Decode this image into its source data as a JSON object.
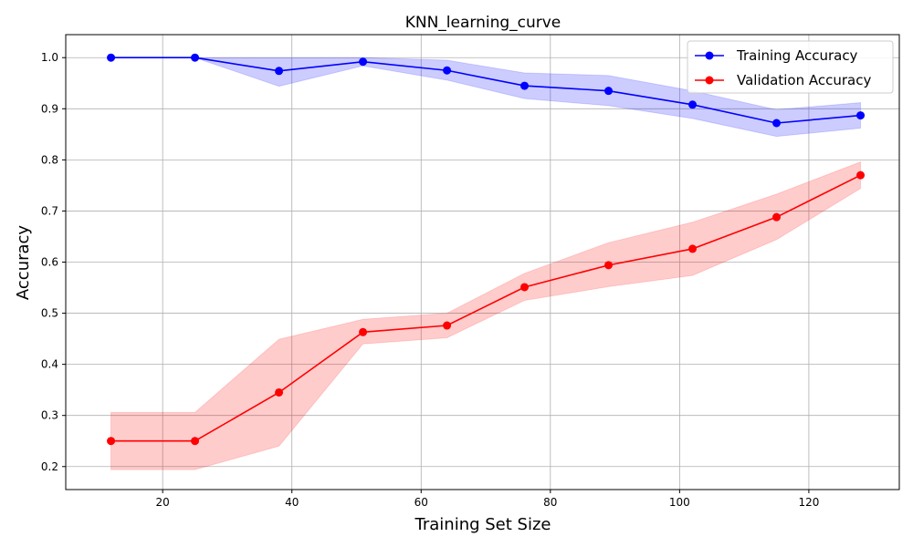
{
  "chart_data": {
    "type": "line",
    "title": "KNN_learning_curve",
    "xlabel": "Training Set Size",
    "ylabel": "Accuracy",
    "xlim": [
      5,
      134
    ],
    "ylim": [
      0.155,
      1.045
    ],
    "xticks": [
      20,
      40,
      60,
      80,
      100,
      120
    ],
    "yticks": [
      0.2,
      0.3,
      0.4,
      0.5,
      0.6,
      0.7,
      0.8,
      0.9,
      1.0
    ],
    "grid": true,
    "legend_position": "top-right",
    "x": [
      12,
      25,
      38,
      51,
      64,
      76,
      89,
      102,
      115,
      128
    ],
    "series": [
      {
        "name": "Training Accuracy",
        "color": "#0000ff",
        "band_color": "#0000ff",
        "values": [
          1.0,
          1.0,
          0.974,
          0.992,
          0.975,
          0.945,
          0.935,
          0.908,
          0.872,
          0.887
        ],
        "upper": [
          1.0,
          1.0,
          1.0,
          1.0,
          0.995,
          0.97,
          0.965,
          0.935,
          0.898,
          0.912
        ],
        "lower": [
          1.0,
          1.0,
          0.944,
          0.984,
          0.956,
          0.92,
          0.906,
          0.881,
          0.846,
          0.862
        ]
      },
      {
        "name": "Validation Accuracy",
        "color": "#ff0000",
        "band_color": "#ff0000",
        "values": [
          0.25,
          0.25,
          0.345,
          0.463,
          0.476,
          0.551,
          0.594,
          0.626,
          0.688,
          0.77
        ],
        "upper": [
          0.306,
          0.306,
          0.449,
          0.488,
          0.5,
          0.578,
          0.638,
          0.678,
          0.733,
          0.796
        ],
        "lower": [
          0.194,
          0.194,
          0.24,
          0.44,
          0.452,
          0.525,
          0.552,
          0.574,
          0.644,
          0.744
        ]
      }
    ]
  }
}
